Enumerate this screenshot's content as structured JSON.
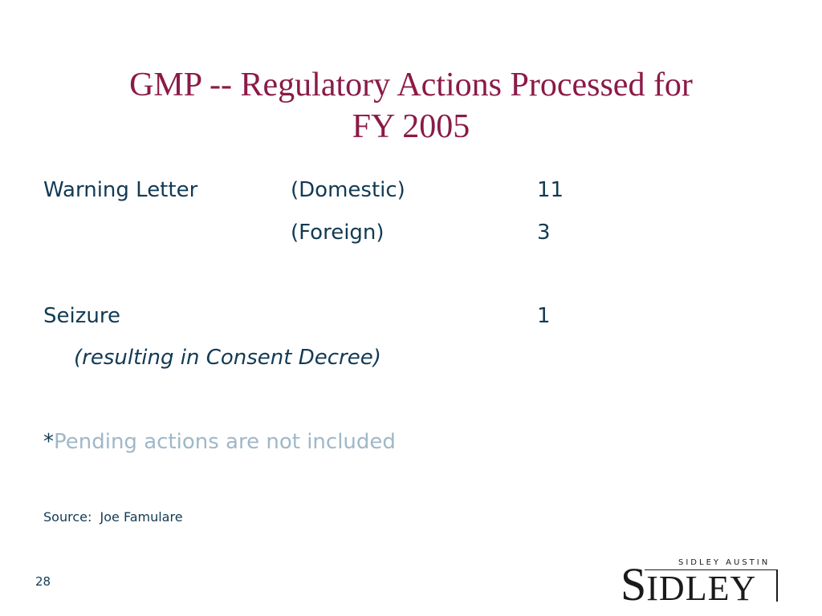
{
  "slide": {
    "title_line1": "GMP -- Regulatory Actions Processed for",
    "title_line2": "FY 2005",
    "rows": [
      {
        "label": "Warning Letter",
        "type": "(Domestic)",
        "count": "11"
      },
      {
        "label": "",
        "type": "(Foreign)",
        "count": "3"
      },
      {
        "label": "Seizure",
        "type": "",
        "count": "1"
      }
    ],
    "seizure_note": "(resulting in Consent Decree)",
    "footnote_marker": "*",
    "footnote_text": "Pending actions are not included",
    "source": "Source:  Joe Famulare",
    "page_number": "28"
  },
  "logo": {
    "firm_line": "SIDLEY AUSTIN",
    "initial": "S",
    "rest": "IDLEY"
  },
  "colors": {
    "title": "#8b1a47",
    "body": "#123a54",
    "footnote": "#9fb8c8"
  }
}
